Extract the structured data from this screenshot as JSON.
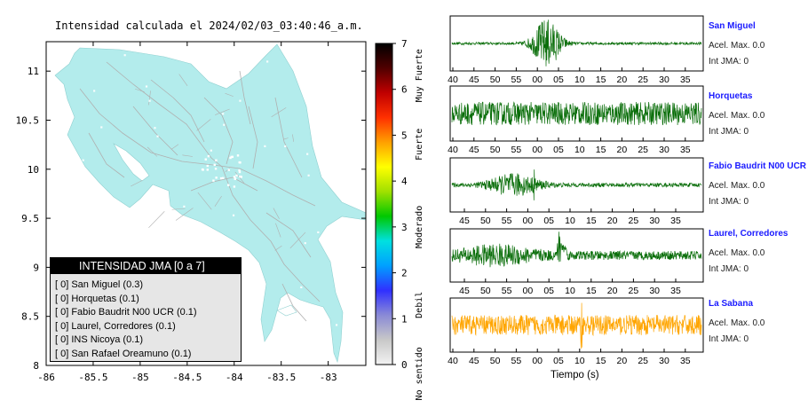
{
  "map": {
    "title": "Intensidad calculada el 2024/02/03_03:40:46_a.m.",
    "x_ticks": [
      "-86",
      "-85.5",
      "-85",
      "-84.5",
      "-84",
      "-83.5",
      "-83"
    ],
    "y_ticks": [
      "11",
      "10.5",
      "10",
      "9.5",
      "9",
      "8.5",
      "8"
    ],
    "land_color": "#b3ecec",
    "road_color": "#b0b0b0",
    "town_color": "#ffffff"
  },
  "legend": {
    "header": "INTENSIDAD JMA [0 a 7]",
    "rows": [
      {
        "text": "[ 0]  San Miguel (0.3)"
      },
      {
        "text": "[ 0]  Horquetas (0.1)"
      },
      {
        "text": "[ 0]  Fabio Baudrit N00 UCR (0.1)"
      },
      {
        "text": "[ 0]  Laurel, Corredores (0.1)"
      },
      {
        "text": "[ 0]  INS Nicoya (0.1)"
      },
      {
        "text": "[ 0]  San Rafael Oreamuno (0.1)"
      }
    ]
  },
  "colorbar": {
    "ticks": [
      "7",
      "6",
      "5",
      "4",
      "3",
      "2",
      "1",
      "0"
    ],
    "labels": [
      "Muy Fuerte",
      "Fuerte",
      "Moderado",
      "Debil",
      "No sentido"
    ],
    "gradient": [
      "#f2f2f2",
      "#c8c8c8",
      "#8a8ad6",
      "#3030ff",
      "#00a0ff",
      "#00e0e0",
      "#00c800",
      "#a0e000",
      "#ffff00",
      "#ffa000",
      "#ff3000",
      "#c00000",
      "#500000",
      "#000000"
    ]
  },
  "stations": [
    {
      "name": "San Miguel",
      "accel": "Acel. Max. 0.0",
      "jma": "Int JMA: 0",
      "color": "#0a6e0a"
    },
    {
      "name": "Horquetas",
      "accel": "Acel. Max. 0.0",
      "jma": "Int JMA: 0",
      "color": "#0a6e0a"
    },
    {
      "name": "Fabio Baudrit N00 UCR",
      "accel": "Acel. Max. 0.0",
      "jma": "Int JMA: 0",
      "color": "#0a6e0a"
    },
    {
      "name": "Laurel, Corredores",
      "accel": "Acel. Max. 0.0",
      "jma": "Int JMA: 0",
      "color": "#0a6e0a"
    },
    {
      "name": "La Sabana",
      "accel": "Acel. Max. 0.0",
      "jma": "Int JMA: 0",
      "color": "#ffa500"
    }
  ],
  "wave_axis": {
    "ticks_a": [
      "40",
      "45",
      "50",
      "55",
      "00",
      "05",
      "10",
      "15",
      "20",
      "25",
      "30",
      "35"
    ],
    "ticks_b": [
      "45",
      "50",
      "55",
      "00",
      "05",
      "10",
      "15",
      "20",
      "25",
      "30",
      "35"
    ],
    "xlabel": "Tiempo (s)"
  },
  "chart_data": {
    "type": "line",
    "title": "Intensidad calculada el 2024/02/03_03:40:46_a.m.",
    "xlabel": "Tiempo (s)",
    "series": [
      {
        "name": "San Miguel",
        "peak_accel": 0.0,
        "jma_intensity": 0,
        "computed_intensity": 0.3
      },
      {
        "name": "Horquetas",
        "peak_accel": 0.0,
        "jma_intensity": 0,
        "computed_intensity": 0.1
      },
      {
        "name": "Fabio Baudrit N00 UCR",
        "peak_accel": 0.0,
        "jma_intensity": 0,
        "computed_intensity": 0.1
      },
      {
        "name": "Laurel, Corredores",
        "peak_accel": 0.0,
        "jma_intensity": 0,
        "computed_intensity": 0.1
      },
      {
        "name": "La Sabana",
        "peak_accel": 0.0,
        "jma_intensity": 0
      }
    ],
    "map_xlim": [
      -86,
      -82.6
    ],
    "map_ylim": [
      8,
      11.3
    ],
    "colorbar_range": [
      0,
      7
    ]
  }
}
